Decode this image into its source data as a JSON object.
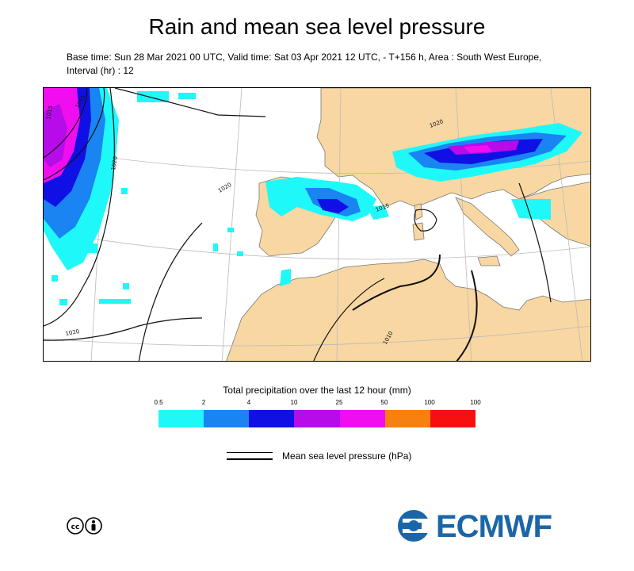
{
  "title": "Rain and mean sea level pressure",
  "subtitle": "Base time: Sun 28 Mar 2021 00 UTC, Valid time: Sat 03 Apr 2021 12 UTC, - T+156 h, Area : South West Europe, Interval (hr) : 12",
  "map": {
    "isobar_labels": [
      "1015",
      "1015",
      "1020",
      "1020",
      "1020",
      "1020",
      "1015",
      "1010"
    ]
  },
  "precip_legend": {
    "title": "Total precipitation over the last 12 hour (mm)",
    "ticks": [
      "0.5",
      "2",
      "4",
      "10",
      "25",
      "50",
      "100",
      "100"
    ],
    "colors": [
      "#1ff8f8",
      "#1a84f2",
      "#1010e4",
      "#b70bea",
      "#f00ef0",
      "#f8800f",
      "#f80f0f"
    ]
  },
  "pressure_legend": {
    "label": "Mean sea level pressure (hPa)"
  },
  "branding": {
    "license_icon": "creative-commons-by-icon",
    "logo_text": "ECMWF",
    "logo_color": "#1b66a6"
  }
}
